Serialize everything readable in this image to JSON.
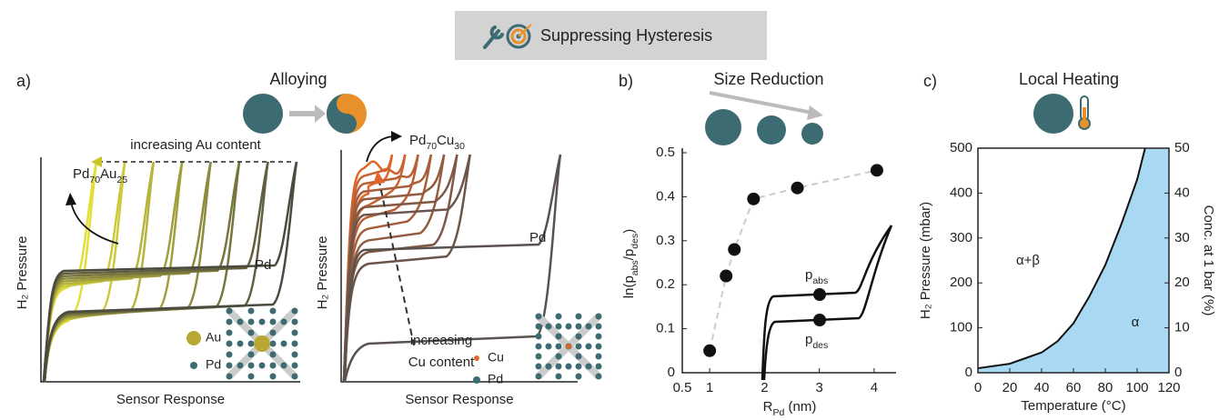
{
  "header": {
    "title": "Suppressing Hysteresis"
  },
  "chart_data": [
    {
      "type": "schematic",
      "panel_label": "a)",
      "title": "Alloying",
      "x_label": "Sensor Response",
      "y_label": "H₂ Pressure",
      "annotations": {
        "trend": "increasing Au content",
        "alloy": [
          "Pd",
          "70",
          "Au",
          "25"
        ],
        "pure": "Pd"
      },
      "legend": [
        {
          "name": "Au",
          "color": "#b9a733"
        },
        {
          "name": "Pd",
          "color": "#3d6b72"
        }
      ]
    },
    {
      "type": "schematic",
      "x_label": "Sensor Response",
      "y_label": "H₂ Pressure",
      "annotations": {
        "trend": [
          "increasing",
          "Cu content"
        ],
        "alloy": [
          "Pd",
          "70",
          "Cu",
          "30"
        ],
        "pure": "Pd"
      },
      "legend": [
        {
          "name": "Cu",
          "color": "#e0662a"
        },
        {
          "name": "Pd",
          "color": "#3d6b72"
        }
      ]
    },
    {
      "type": "scatter",
      "panel_label": "b)",
      "title": "Size Reduction",
      "x_label": [
        "R",
        "Pd",
        " (nm)"
      ],
      "y_label": [
        "ln(p",
        "abs",
        "/p",
        "des",
        ")"
      ],
      "x": [
        1.0,
        1.3,
        1.45,
        1.8,
        2.6,
        4.05
      ],
      "values": [
        0.05,
        0.22,
        0.28,
        0.395,
        0.42,
        0.46
      ],
      "color": "#111111",
      "line_color": "#cccccc",
      "xlim": [
        0.5,
        4.4
      ],
      "xticks": [
        0.5,
        1,
        2,
        3,
        4
      ],
      "ylim": [
        0,
        0.5
      ],
      "yticks": [
        0,
        0.1,
        0.2,
        0.3,
        0.4,
        0.5
      ],
      "annotations": {
        "abs": [
          "p",
          "abs"
        ],
        "des": [
          "p",
          "des"
        ]
      }
    },
    {
      "type": "area",
      "panel_label": "c)",
      "title": "Local Heating",
      "x_label": "Temperature (°C)",
      "y_label": "H₂ Pressure (mbar)",
      "y2_label": "Conc. at 1 bar (%)",
      "x": [
        0,
        20,
        40,
        50,
        60,
        70,
        80,
        90,
        100,
        105
      ],
      "values": [
        10,
        20,
        45,
        70,
        110,
        170,
        240,
        330,
        430,
        500
      ],
      "color": "#a9d9f2",
      "xlim": [
        0,
        120
      ],
      "xticks": [
        0,
        20,
        40,
        60,
        80,
        100,
        120
      ],
      "ylim": [
        0,
        500
      ],
      "yticks": [
        0,
        100,
        200,
        300,
        400,
        500
      ],
      "y2lim": [
        0,
        50
      ],
      "y2ticks": [
        0,
        10,
        20,
        30,
        40,
        50
      ],
      "annotations": {
        "two_phase": "α+β",
        "single_phase": "α"
      }
    }
  ]
}
